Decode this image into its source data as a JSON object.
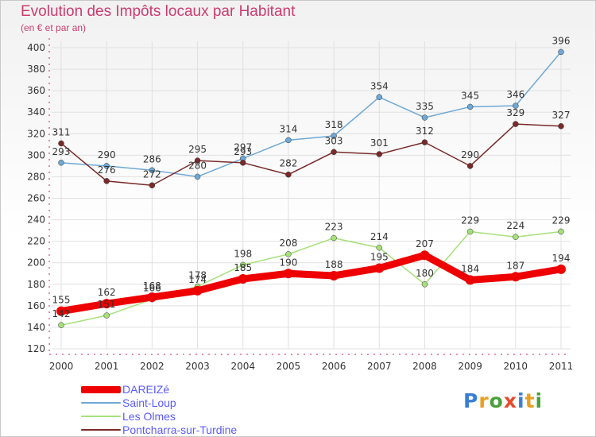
{
  "title": "Evolution des Impôts locaux par Habitant",
  "subtitle": "(en € et par an)",
  "logo_text": "Proxiti",
  "colors": {
    "title": "#cc3b6e",
    "grid": "#e0e0e0",
    "legend_text": "#5b5bff"
  },
  "chart_data": {
    "type": "line",
    "title": "Evolution des Impôts locaux par Habitant",
    "subtitle": "(en € et par an)",
    "x": [
      2000,
      2001,
      2002,
      2003,
      2004,
      2005,
      2006,
      2007,
      2008,
      2009,
      2010,
      2011
    ],
    "ylim": [
      120,
      400
    ],
    "yticks": [
      120,
      140,
      160,
      180,
      200,
      220,
      240,
      260,
      280,
      300,
      320,
      340,
      360,
      380,
      400
    ],
    "grid": true,
    "legend_position": "bottom-left",
    "series": [
      {
        "name": "DAREIZé",
        "color": "#ee0000",
        "values": [
          155,
          162,
          168,
          174,
          185,
          190,
          188,
          195,
          207,
          184,
          187,
          194
        ]
      },
      {
        "name": "Saint-Loup",
        "color": "#6fa8d6",
        "values": [
          293,
          290,
          286,
          280,
          297,
          314,
          318,
          354,
          335,
          345,
          346,
          396
        ]
      },
      {
        "name": "Les Olmes",
        "color": "#a6e07a",
        "values": [
          142,
          151,
          166,
          178,
          198,
          208,
          223,
          214,
          180,
          229,
          224,
          229
        ]
      },
      {
        "name": "Pontcharra-sur-Turdine",
        "color": "#7a2a2a",
        "values": [
          311,
          276,
          272,
          295,
          293,
          282,
          303,
          301,
          312,
          290,
          329,
          327
        ]
      }
    ]
  }
}
